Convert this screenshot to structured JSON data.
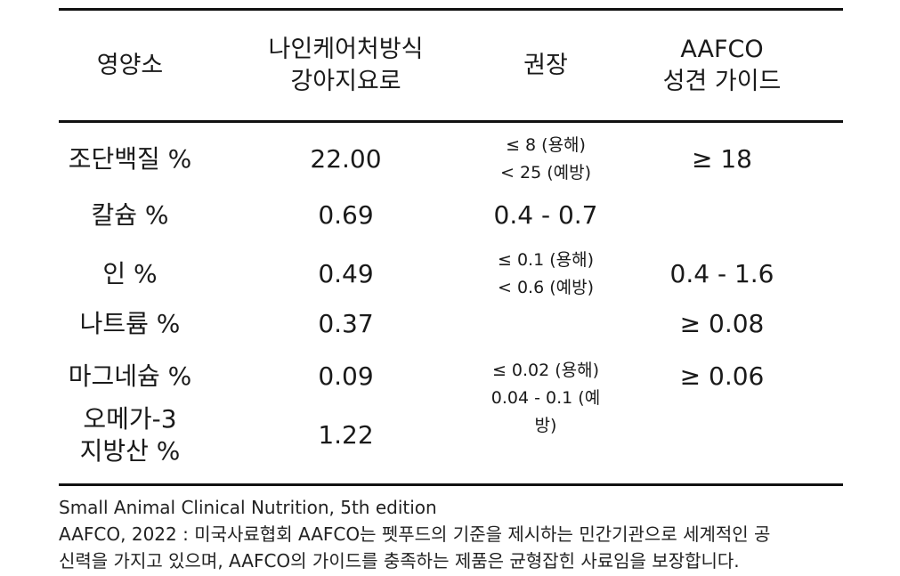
{
  "table": {
    "headers": [
      [
        "영양소"
      ],
      [
        "나인케어처방식",
        "강아지요로"
      ],
      [
        "권장"
      ],
      [
        "AAFCO",
        "성견 가이드"
      ]
    ],
    "rows": [
      {
        "nutrient": [
          "조단백질 %"
        ],
        "value": "22.00",
        "rec": [],
        "aafco": "≥ 18"
      },
      {
        "nutrient": [
          "칼슘 %"
        ],
        "value": "0.69",
        "rec": [],
        "aafco": ""
      },
      {
        "nutrient": [
          "인 %"
        ],
        "value": "0.49",
        "rec": [],
        "aafco": "0.4 - 1.6"
      },
      {
        "nutrient": [
          "나트륨 %"
        ],
        "value": "0.37",
        "rec": [],
        "aafco": "≥ 0.08"
      },
      {
        "nutrient": [
          "마그네슘 %"
        ],
        "value": "0.09",
        "rec": [],
        "aafco": "≥ 0.06"
      },
      {
        "nutrient": [
          "오메가-3",
          "지방산 %"
        ],
        "value": "1.22",
        "rec": [],
        "aafco": ""
      }
    ],
    "recommendations": {
      "protein": [
        "≤ 8 (용해)",
        "< 25 (예방)"
      ],
      "calcium": [
        "0.4 - 0.7"
      ],
      "phosphorus": [
        "≤ 0.1 (용해)",
        "< 0.6 (예방)"
      ],
      "magnesium": [
        "≤ 0.02 (용해)",
        "0.04 - 0.1 (예방)"
      ]
    }
  },
  "footer": {
    "line1": "Small Animal Clinical Nutrition, 5th edition",
    "line2": "AAFCO, 2022 : 미국사료협회 AAFCO는 펫푸드의 기준을 제시하는 민간기관으로 세계적인 공",
    "line3": "신력을 가지고 있으며, AAFCO의 가이드를 충족하는 제품은 균형잡힌 사료임을 보장합니다."
  }
}
